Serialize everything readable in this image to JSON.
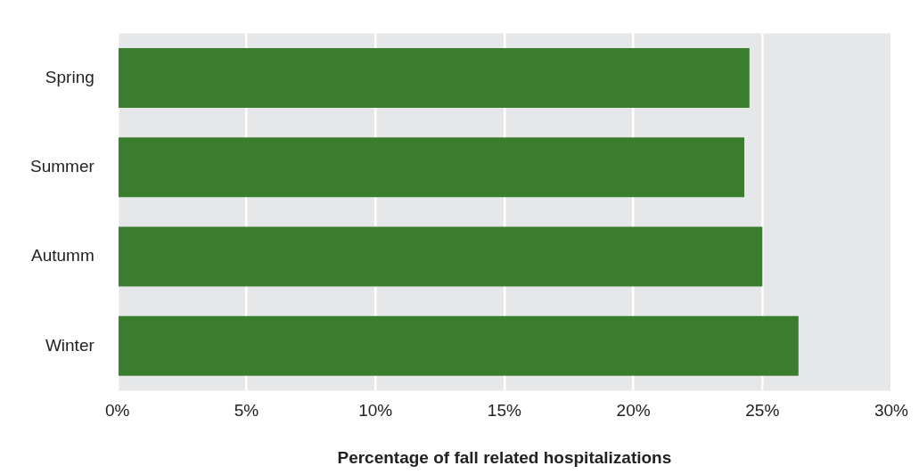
{
  "chart_data": {
    "type": "bar",
    "orientation": "horizontal",
    "xlabel": "Percentage of fall related hospitalizations",
    "categories": [
      "Spring",
      "Summer",
      "Autumm",
      "Winter"
    ],
    "values": [
      24.5,
      24.3,
      25.0,
      26.4
    ],
    "color": "#3a7d2e",
    "xlim": [
      0,
      30
    ],
    "xticks": [
      {
        "value": 0,
        "label": "0%"
      },
      {
        "value": 5,
        "label": "5%"
      },
      {
        "value": 10,
        "label": "10%"
      },
      {
        "value": 15,
        "label": "15%"
      },
      {
        "value": 20,
        "label": "20%"
      },
      {
        "value": 25,
        "label": "25%"
      },
      {
        "value": 30,
        "label": "30%"
      }
    ],
    "grid": "x",
    "legend": false
  }
}
